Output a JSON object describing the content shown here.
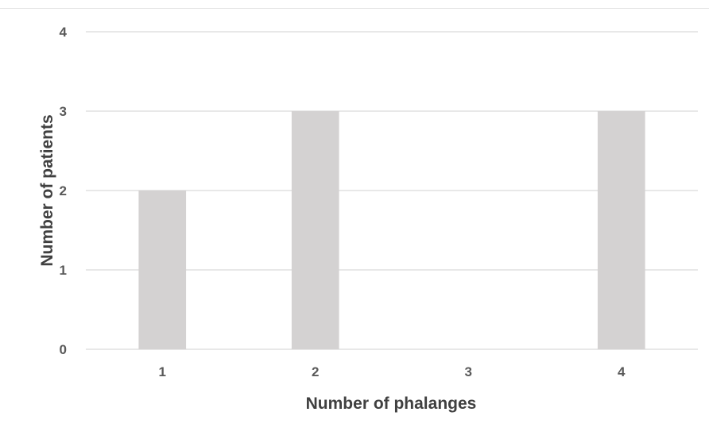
{
  "chart_data": {
    "type": "bar",
    "categories": [
      "1",
      "2",
      "3",
      "4"
    ],
    "values": [
      2,
      3,
      0,
      3
    ],
    "xlabel": "Number of phalanges",
    "ylabel": "Number of patients",
    "ylim": [
      0,
      4
    ],
    "yticks": [
      "0",
      "1",
      "2",
      "3",
      "4"
    ],
    "grid": true,
    "legend": "none",
    "colors": {
      "bar": "#d4d2d2",
      "grid": "#d9d9d9",
      "tick_text": "#595959",
      "axis_title": "#404040"
    }
  }
}
